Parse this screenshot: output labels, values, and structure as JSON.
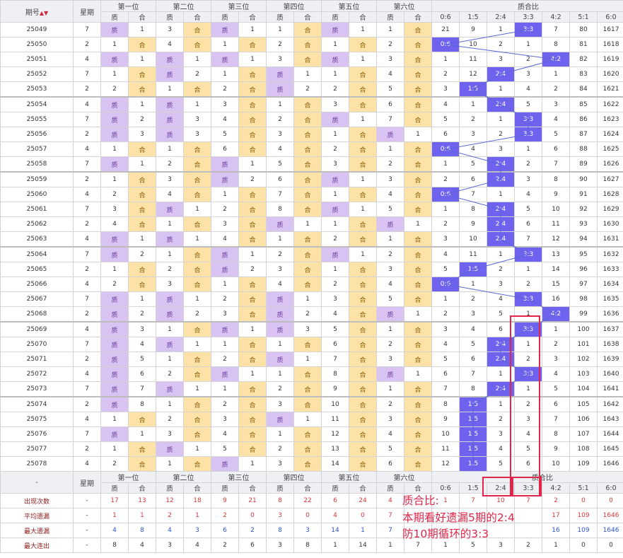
{
  "header": {
    "period_label": "期号",
    "sort_icon": "▲▼",
    "week_label": "星期",
    "positions": [
      "第一位",
      "第二位",
      "第三位",
      "第四位",
      "第五位",
      "第六位"
    ],
    "ratio_group_label": "质合比",
    "prime_label": "质",
    "composite_label": "合",
    "ratios": [
      "0:6",
      "1:5",
      "2:4",
      "3:3",
      "4:2",
      "5:1",
      "6:0"
    ]
  },
  "rows": [
    {
      "period": "25049",
      "week": "7",
      "pos": [
        [
          "p",
          "1"
        ],
        [
          "3",
          "h"
        ],
        [
          "p",
          "1"
        ],
        [
          "1",
          "h"
        ],
        [
          "p",
          "1"
        ],
        [
          "1",
          "h"
        ]
      ],
      "ratio": [
        "21",
        "9",
        "1",
        "3:3",
        "7",
        "80",
        "1617"
      ],
      "hit": 3
    },
    {
      "period": "25050",
      "week": "2",
      "pos": [
        [
          "1",
          "h"
        ],
        [
          "4",
          "h"
        ],
        [
          "1",
          "h"
        ],
        [
          "2",
          "h"
        ],
        [
          "1",
          "h"
        ],
        [
          "2",
          "h"
        ]
      ],
      "ratio": [
        "0:6",
        "10",
        "2",
        "1",
        "8",
        "81",
        "1618"
      ],
      "hit": 0
    },
    {
      "period": "25051",
      "week": "4",
      "pos": [
        [
          "p",
          "1"
        ],
        [
          "p",
          "1"
        ],
        [
          "p",
          "1"
        ],
        [
          "3",
          "h"
        ],
        [
          "p",
          "1"
        ],
        [
          "3",
          "h"
        ]
      ],
      "ratio": [
        "1",
        "11",
        "3",
        "2",
        "4:2",
        "82",
        "1619"
      ],
      "hit": 4
    },
    {
      "period": "25052",
      "week": "7",
      "pos": [
        [
          "1",
          "h"
        ],
        [
          "p",
          "2"
        ],
        [
          "1",
          "h"
        ],
        [
          "p",
          "1"
        ],
        [
          "1",
          "h"
        ],
        [
          "4",
          "h"
        ]
      ],
      "ratio": [
        "2",
        "12",
        "2:4",
        "3",
        "1",
        "83",
        "1620"
      ],
      "hit": 2
    },
    {
      "period": "25053",
      "week": "2",
      "pos": [
        [
          "2",
          "h"
        ],
        [
          "1",
          "h"
        ],
        [
          "2",
          "h"
        ],
        [
          "p",
          "2"
        ],
        [
          "2",
          "h"
        ],
        [
          "5",
          "h"
        ]
      ],
      "ratio": [
        "3",
        "1:5",
        "1",
        "4",
        "2",
        "84",
        "1621"
      ],
      "hit": 1
    },
    {
      "period": "25054",
      "week": "4",
      "pos": [
        [
          "p",
          "1"
        ],
        [
          "p",
          "1"
        ],
        [
          "3",
          "h"
        ],
        [
          "1",
          "h"
        ],
        [
          "3",
          "h"
        ],
        [
          "6",
          "h"
        ]
      ],
      "ratio": [
        "4",
        "1",
        "2:4",
        "5",
        "3",
        "85",
        "1622"
      ],
      "hit": 2
    },
    {
      "period": "25055",
      "week": "7",
      "pos": [
        [
          "p",
          "2"
        ],
        [
          "p",
          "3"
        ],
        [
          "4",
          "h"
        ],
        [
          "2",
          "h"
        ],
        [
          "p",
          "1"
        ],
        [
          "7",
          "h"
        ]
      ],
      "ratio": [
        "5",
        "2",
        "1",
        "3:3",
        "4",
        "86",
        "1623"
      ],
      "hit": 3
    },
    {
      "period": "25056",
      "week": "2",
      "pos": [
        [
          "p",
          "3"
        ],
        [
          "p",
          "3"
        ],
        [
          "5",
          "h"
        ],
        [
          "3",
          "h"
        ],
        [
          "1",
          "h"
        ],
        [
          "p",
          "1"
        ]
      ],
      "ratio": [
        "6",
        "3",
        "2",
        "3:3",
        "5",
        "87",
        "1624"
      ],
      "hit": 3
    },
    {
      "period": "25057",
      "week": "4",
      "pos": [
        [
          "1",
          "h"
        ],
        [
          "1",
          "h"
        ],
        [
          "6",
          "h"
        ],
        [
          "4",
          "h"
        ],
        [
          "2",
          "h"
        ],
        [
          "1",
          "h"
        ]
      ],
      "ratio": [
        "0:6",
        "4",
        "3",
        "1",
        "6",
        "88",
        "1625"
      ],
      "hit": 0
    },
    {
      "period": "25058",
      "week": "7",
      "pos": [
        [
          "p",
          "1"
        ],
        [
          "2",
          "h"
        ],
        [
          "p",
          "1"
        ],
        [
          "5",
          "h"
        ],
        [
          "3",
          "h"
        ],
        [
          "2",
          "h"
        ]
      ],
      "ratio": [
        "1",
        "5",
        "2:4",
        "2",
        "7",
        "89",
        "1626"
      ],
      "hit": 2
    },
    {
      "period": "25059",
      "week": "2",
      "pos": [
        [
          "1",
          "h"
        ],
        [
          "3",
          "h"
        ],
        [
          "p",
          "2"
        ],
        [
          "6",
          "h"
        ],
        [
          "p",
          "1"
        ],
        [
          "3",
          "h"
        ]
      ],
      "ratio": [
        "2",
        "6",
        "2:4",
        "3",
        "8",
        "90",
        "1627"
      ],
      "hit": 2
    },
    {
      "period": "25060",
      "week": "4",
      "pos": [
        [
          "2",
          "h"
        ],
        [
          "4",
          "h"
        ],
        [
          "1",
          "h"
        ],
        [
          "7",
          "h"
        ],
        [
          "1",
          "h"
        ],
        [
          "4",
          "h"
        ]
      ],
      "ratio": [
        "0:6",
        "7",
        "1",
        "4",
        "9",
        "91",
        "1628"
      ],
      "hit": 0
    },
    {
      "period": "25061",
      "week": "7",
      "pos": [
        [
          "3",
          "h"
        ],
        [
          "p",
          "1"
        ],
        [
          "2",
          "h"
        ],
        [
          "8",
          "h"
        ],
        [
          "p",
          "1"
        ],
        [
          "5",
          "h"
        ]
      ],
      "ratio": [
        "1",
        "8",
        "2:4",
        "5",
        "10",
        "92",
        "1629"
      ],
      "hit": 2
    },
    {
      "period": "25062",
      "week": "2",
      "pos": [
        [
          "4",
          "h"
        ],
        [
          "1",
          "h"
        ],
        [
          "3",
          "h"
        ],
        [
          "p",
          "1"
        ],
        [
          "1",
          "h"
        ],
        [
          "p",
          "1"
        ]
      ],
      "ratio": [
        "2",
        "9",
        "2:4",
        "6",
        "11",
        "93",
        "1630"
      ],
      "hit": 2
    },
    {
      "period": "25063",
      "week": "4",
      "pos": [
        [
          "p",
          "1"
        ],
        [
          "p",
          "1"
        ],
        [
          "4",
          "h"
        ],
        [
          "1",
          "h"
        ],
        [
          "2",
          "h"
        ],
        [
          "1",
          "h"
        ]
      ],
      "ratio": [
        "3",
        "10",
        "2:4",
        "7",
        "12",
        "94",
        "1631"
      ],
      "hit": 2
    },
    {
      "period": "25064",
      "week": "7",
      "pos": [
        [
          "p",
          "2"
        ],
        [
          "1",
          "h"
        ],
        [
          "p",
          "1"
        ],
        [
          "2",
          "h"
        ],
        [
          "p",
          "1"
        ],
        [
          "2",
          "h"
        ]
      ],
      "ratio": [
        "4",
        "11",
        "1",
        "3:3",
        "13",
        "95",
        "1632"
      ],
      "hit": 3
    },
    {
      "period": "25065",
      "week": "2",
      "pos": [
        [
          "1",
          "h"
        ],
        [
          "2",
          "h"
        ],
        [
          "p",
          "2"
        ],
        [
          "3",
          "h"
        ],
        [
          "1",
          "h"
        ],
        [
          "3",
          "h"
        ]
      ],
      "ratio": [
        "5",
        "1:5",
        "2",
        "1",
        "14",
        "96",
        "1633"
      ],
      "hit": 1
    },
    {
      "period": "25066",
      "week": "4",
      "pos": [
        [
          "2",
          "h"
        ],
        [
          "3",
          "h"
        ],
        [
          "1",
          "h"
        ],
        [
          "4",
          "h"
        ],
        [
          "2",
          "h"
        ],
        [
          "4",
          "h"
        ]
      ],
      "ratio": [
        "0:6",
        "1",
        "3",
        "2",
        "15",
        "97",
        "1634"
      ],
      "hit": 0
    },
    {
      "period": "25067",
      "week": "7",
      "pos": [
        [
          "p",
          "1"
        ],
        [
          "p",
          "1"
        ],
        [
          "2",
          "h"
        ],
        [
          "p",
          "1"
        ],
        [
          "3",
          "h"
        ],
        [
          "5",
          "h"
        ]
      ],
      "ratio": [
        "1",
        "2",
        "4",
        "3:3",
        "16",
        "98",
        "1635"
      ],
      "hit": 3
    },
    {
      "period": "25068",
      "week": "2",
      "pos": [
        [
          "p",
          "2"
        ],
        [
          "p",
          "2"
        ],
        [
          "3",
          "h"
        ],
        [
          "p",
          "2"
        ],
        [
          "4",
          "h"
        ],
        [
          "p",
          "1"
        ]
      ],
      "ratio": [
        "2",
        "3",
        "5",
        "1",
        "4:2",
        "99",
        "1636"
      ],
      "hit": 4
    },
    {
      "period": "25069",
      "week": "4",
      "pos": [
        [
          "p",
          "3"
        ],
        [
          "1",
          "h"
        ],
        [
          "p",
          "1"
        ],
        [
          "p",
          "3"
        ],
        [
          "5",
          "h"
        ],
        [
          "1",
          "h"
        ]
      ],
      "ratio": [
        "3",
        "4",
        "6",
        "3:3",
        "1",
        "100",
        "1637"
      ],
      "hit": 3
    },
    {
      "period": "25070",
      "week": "7",
      "pos": [
        [
          "p",
          "4"
        ],
        [
          "p",
          "1"
        ],
        [
          "1",
          "h"
        ],
        [
          "1",
          "h"
        ],
        [
          "6",
          "h"
        ],
        [
          "2",
          "h"
        ]
      ],
      "ratio": [
        "4",
        "5",
        "2:4",
        "1",
        "2",
        "101",
        "1638"
      ],
      "hit": 2
    },
    {
      "period": "25071",
      "week": "2",
      "pos": [
        [
          "p",
          "5"
        ],
        [
          "1",
          "h"
        ],
        [
          "2",
          "h"
        ],
        [
          "p",
          "1"
        ],
        [
          "7",
          "h"
        ],
        [
          "3",
          "h"
        ]
      ],
      "ratio": [
        "5",
        "6",
        "2:4",
        "2",
        "3",
        "102",
        "1639"
      ],
      "hit": 2
    },
    {
      "period": "25072",
      "week": "4",
      "pos": [
        [
          "p",
          "6"
        ],
        [
          "2",
          "h"
        ],
        [
          "p",
          "1"
        ],
        [
          "1",
          "h"
        ],
        [
          "8",
          "h"
        ],
        [
          "p",
          "1"
        ]
      ],
      "ratio": [
        "6",
        "7",
        "1",
        "3:3",
        "4",
        "103",
        "1640"
      ],
      "hit": 3
    },
    {
      "period": "25073",
      "week": "7",
      "pos": [
        [
          "p",
          "7"
        ],
        [
          "p",
          "1"
        ],
        [
          "1",
          "h"
        ],
        [
          "2",
          "h"
        ],
        [
          "9",
          "h"
        ],
        [
          "1",
          "h"
        ]
      ],
      "ratio": [
        "7",
        "8",
        "2:4",
        "1",
        "5",
        "104",
        "1641"
      ],
      "hit": 2
    },
    {
      "period": "25074",
      "week": "2",
      "pos": [
        [
          "p",
          "8"
        ],
        [
          "1",
          "h"
        ],
        [
          "2",
          "h"
        ],
        [
          "3",
          "h"
        ],
        [
          "10",
          "h"
        ],
        [
          "2",
          "h"
        ]
      ],
      "ratio": [
        "8",
        "1:5",
        "1",
        "2",
        "6",
        "105",
        "1642"
      ],
      "hit": 1
    },
    {
      "period": "25075",
      "week": "4",
      "pos": [
        [
          "1",
          "h"
        ],
        [
          "2",
          "h"
        ],
        [
          "3",
          "h"
        ],
        [
          "p",
          "1"
        ],
        [
          "11",
          "h"
        ],
        [
          "3",
          "h"
        ]
      ],
      "ratio": [
        "9",
        "1:5",
        "2",
        "3",
        "7",
        "106",
        "1643"
      ],
      "hit": 1
    },
    {
      "period": "25076",
      "week": "7",
      "pos": [
        [
          "p",
          "1"
        ],
        [
          "3",
          "h"
        ],
        [
          "4",
          "h"
        ],
        [
          "1",
          "h"
        ],
        [
          "12",
          "h"
        ],
        [
          "4",
          "h"
        ]
      ],
      "ratio": [
        "10",
        "1:5",
        "3",
        "4",
        "8",
        "107",
        "1644"
      ],
      "hit": 1
    },
    {
      "period": "25077",
      "week": "2",
      "pos": [
        [
          "1",
          "h"
        ],
        [
          "p",
          "1"
        ],
        [
          "5",
          "h"
        ],
        [
          "2",
          "h"
        ],
        [
          "13",
          "h"
        ],
        [
          "5",
          "h"
        ]
      ],
      "ratio": [
        "11",
        "1:5",
        "4",
        "5",
        "9",
        "108",
        "1645"
      ],
      "hit": 1
    },
    {
      "period": "25078",
      "week": "4",
      "pos": [
        [
          "2",
          "h"
        ],
        [
          "1",
          "h"
        ],
        [
          "p",
          "1"
        ],
        [
          "3",
          "h"
        ],
        [
          "14",
          "h"
        ],
        [
          "6",
          "h"
        ]
      ],
      "ratio": [
        "12",
        "1:5",
        "5",
        "6",
        "10",
        "109",
        "1646"
      ],
      "hit": 1
    }
  ],
  "footer_dash": "-",
  "stats": [
    {
      "label": "出现次数",
      "week": "-",
      "vals": [
        "17",
        "13",
        "12",
        "18",
        "9",
        "21",
        "8",
        "22",
        "6",
        "24",
        "4",
        "",
        "1",
        "7",
        "10",
        "7",
        "2",
        "0",
        "0"
      ],
      "tone": "red"
    },
    {
      "label": "平均遗漏",
      "week": "-",
      "vals": [
        "1",
        "1",
        "2",
        "1",
        "2",
        "0",
        "3",
        "0",
        "4",
        "0",
        "7",
        "",
        "",
        "",
        "",
        "",
        "17",
        "109",
        "1646"
      ],
      "tone": "red"
    },
    {
      "label": "最大遗漏",
      "week": "-",
      "vals": [
        "4",
        "8",
        "4",
        "3",
        "6",
        "2",
        "8",
        "3",
        "14",
        "1",
        "7",
        "",
        "",
        "",
        "",
        "",
        "16",
        "109",
        "1646"
      ],
      "tone": "blue"
    },
    {
      "label": "最大连出",
      "week": "-",
      "vals": [
        "8",
        "4",
        "3",
        "4",
        "2",
        "6",
        "3",
        "8",
        "1",
        "14",
        "1",
        "7",
        "1",
        "5",
        "3",
        "2",
        "1",
        "0",
        "0"
      ],
      "tone": "dark"
    }
  ],
  "note": {
    "line1": "质合比:",
    "line2": "本期看好遗漏5期的2:4",
    "line3": "防10期循环的3:3"
  },
  "colors": {
    "prime_bg": "#d9c3f3",
    "composite_bg": "#fce2a6",
    "hit_bg": "#6f62ef",
    "annotation": "#e0264a"
  }
}
